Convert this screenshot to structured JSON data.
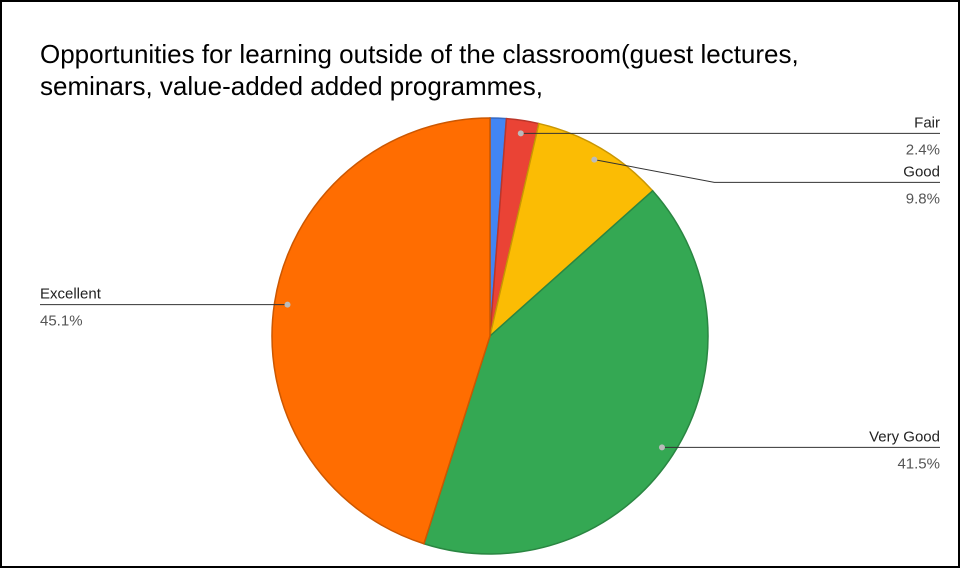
{
  "chart_data": {
    "type": "pie",
    "title": "Opportunities for learning outside of the classroom(guest lectures, seminars, value-added added programmes,",
    "categories": [
      null,
      "Fair",
      "Good",
      "Very Good",
      "Excellent"
    ],
    "values": [
      1.2,
      2.4,
      9.8,
      41.5,
      45.1
    ],
    "value_labels": [
      null,
      "2.4%",
      "9.8%",
      "41.5%",
      "45.1%"
    ],
    "colors": [
      "#4285f4",
      "#ea4335",
      "#fbbc04",
      "#34a853",
      "#ff6d01"
    ]
  }
}
